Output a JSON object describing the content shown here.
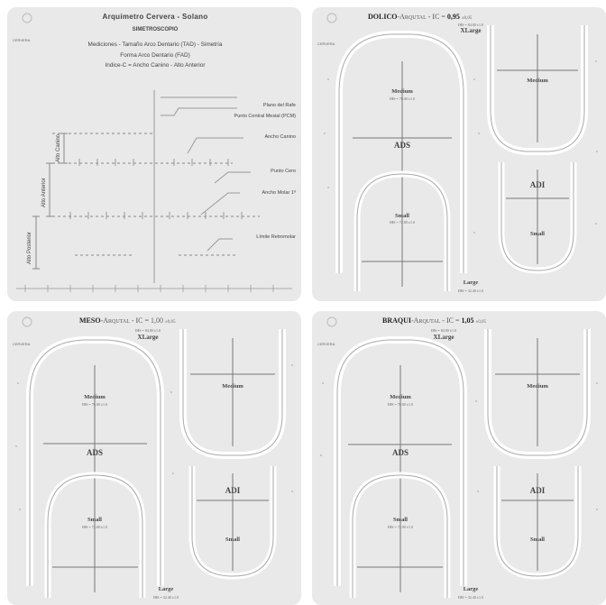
{
  "panel1": {
    "title": "Arquimetro Cervera - Solano",
    "subtitle": "SIMETROSCOPIO",
    "desc_line1": "Mediciones - Tamaño Arco Dentario (TAD) - Simetría",
    "desc_line2": "Forma Arco Dentario (FAD)",
    "desc_line3": "Indice-C = Ancho Canino - Alto Anterior",
    "labels": {
      "plano_rafe": "Plano del Rafe",
      "punto_central": "Punto Central Mesial (PCM)",
      "ancho_canino": "Ancho Canino",
      "punto_cero": "Punto Cero",
      "ancho_molar": "Ancho Molar 1º",
      "limite": "Límite Retromolar",
      "alto_canino": "Alto Canino",
      "alto_anterior": "Alto Anterior",
      "alto_posterior": "Alto Posterior"
    }
  },
  "common": {
    "logo_text": "CERVERA",
    "ads": "ADS",
    "adi": "ADI",
    "medium": "Medium",
    "medium_sub": "IHS = 76.00 ±1.0",
    "small": "Small",
    "small_sub": "IHS = 72.00 ±1.0",
    "xlarge": "XLarge",
    "xlarge_sub": "IHS = 84.00 ±1.0",
    "large": "Large",
    "large_sub": "IHS = 32.40 ±1.0"
  },
  "panel2": {
    "name": "DOLICO",
    "rest": "-Arqutal - IC = ",
    "value": "0,95",
    "tol": "±0,05"
  },
  "panel3": {
    "name": "MESO",
    "rest": "-Arqutal - IC = ",
    "value": "1,00",
    "tol": "±0,05"
  },
  "panel4": {
    "name": "BRAQUI",
    "rest": "-Arqutal - IC = ",
    "value": "1,05",
    "tol": "±0,05"
  }
}
